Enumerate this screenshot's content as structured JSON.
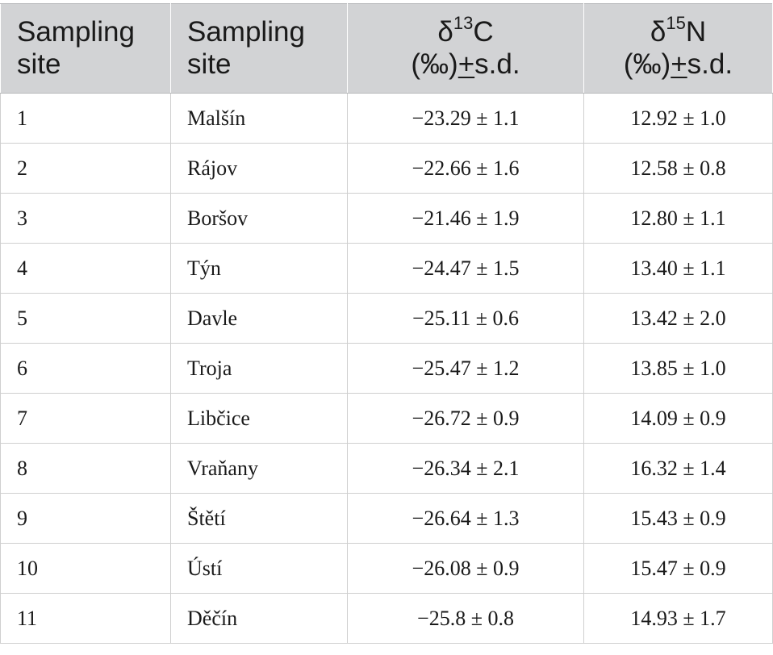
{
  "table": {
    "headers": [
      {
        "line1": "Sampling",
        "line2": "site"
      },
      {
        "line1": "Sampling",
        "line2": "site"
      },
      {
        "line1_pre": "δ",
        "line1_sup": "13",
        "line1_post": "C",
        "line2_pre": "(‰)",
        "line2_u": "+",
        "line2_post": "s.d."
      },
      {
        "line1_pre": "δ",
        "line1_sup": "15",
        "line1_post": "N",
        "line2_pre": "(‰)",
        "line2_u": "+",
        "line2_post": "s.d."
      }
    ],
    "rows": [
      {
        "num": "1",
        "site": "Malšín",
        "c13": "−23.29 ± 1.1",
        "n15": "12.92 ± 1.0"
      },
      {
        "num": "2",
        "site": "Rájov",
        "c13": "−22.66 ± 1.6",
        "n15": "12.58 ± 0.8"
      },
      {
        "num": "3",
        "site": "Boršov",
        "c13": "−21.46 ± 1.9",
        "n15": "12.80 ± 1.1"
      },
      {
        "num": "4",
        "site": "Týn",
        "c13": "−24.47 ± 1.5",
        "n15": "13.40 ± 1.1"
      },
      {
        "num": "5",
        "site": "Davle",
        "c13": "−25.11 ± 0.6",
        "n15": "13.42 ± 2.0"
      },
      {
        "num": "6",
        "site": "Troja",
        "c13": "−25.47 ± 1.2",
        "n15": "13.85 ± 1.0"
      },
      {
        "num": "7",
        "site": "Libčice",
        "c13": "−26.72 ± 0.9",
        "n15": "14.09 ± 0.9"
      },
      {
        "num": "8",
        "site": "Vraňany",
        "c13": "−26.34 ± 2.1",
        "n15": "16.32 ± 1.4"
      },
      {
        "num": "9",
        "site": "Štětí",
        "c13": "−26.64 ± 1.3",
        "n15": "15.43 ± 0.9"
      },
      {
        "num": "10",
        "site": "Ústí",
        "c13": "−26.08 ± 0.9",
        "n15": "15.47 ± 0.9"
      },
      {
        "num": "11",
        "site": "Děčín",
        "c13": "−25.8 ± 0.8",
        "n15": "14.93 ± 1.7"
      }
    ]
  },
  "colors": {
    "header_bg": "#d2d3d5",
    "border": "#cfcfcf",
    "text": "#1a1a1a"
  }
}
